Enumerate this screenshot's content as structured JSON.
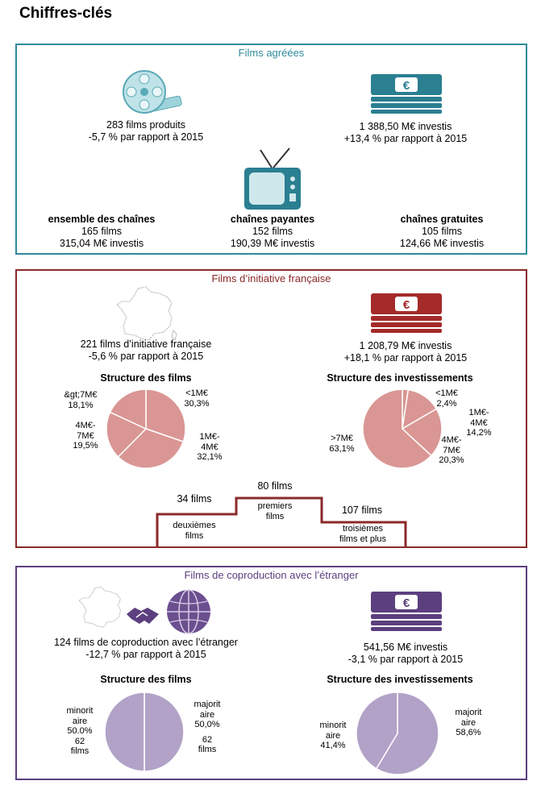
{
  "page_title": "Chiffres-clés",
  "panel1": {
    "title": "Films agréées",
    "films_line1": "283 films produits",
    "films_line2": "-5,7 % par rapport à 2015",
    "invest_line1": "1 388,50 M€ investis",
    "invest_line2": "+13,4 % par rapport à 2015",
    "channels": [
      {
        "name": "ensemble des chaînes",
        "films": "165 films",
        "invest": "315,04 M€ investis"
      },
      {
        "name": "chaînes payantes",
        "films": "152 films",
        "invest": "190,39 M€ investis"
      },
      {
        "name": "chaînes gratuites",
        "films": "105 films",
        "invest": "124,66 M€ investis"
      }
    ],
    "colors": {
      "border": "#2e8b9a",
      "title": "#2e8b9a",
      "accent": "#2a7f91"
    }
  },
  "panel2": {
    "title": "Films d’initiative française",
    "films_line1": "221 films d’initiative française",
    "films_line2": "-5,6 % par rapport à 2015",
    "invest_line1": "1 208,79 M€ investis",
    "invest_line2": "+18,1 % par rapport à 2015",
    "structure_films_title": "Structure des films",
    "structure_invest_title": "Structure des investissements",
    "films_pie_labels": {
      "gt7": [
        "&gt;7M€",
        "18,1%"
      ],
      "lt1": [
        "<1M€",
        "30,3%"
      ],
      "m4_7": [
        "4M€-",
        "7M€",
        "19,5%"
      ],
      "m1_4": [
        "1M€-",
        "4M€",
        "32,1%"
      ]
    },
    "invest_pie_labels": {
      "lt1": [
        "<1M€",
        "2,4%"
      ],
      "m1_4": [
        "1M€-",
        "4M€",
        "14,2%"
      ],
      "m4_7": [
        "4M€-",
        "7M€",
        "20,3%"
      ],
      "gt7": [
        ">7M€",
        "63,1%"
      ]
    },
    "podium": {
      "second_count": "34 films",
      "second_label": [
        "deuxièmes",
        "films"
      ],
      "first_count": "80 films",
      "first_label": [
        "premiers",
        "films"
      ],
      "third_count": "107 films",
      "third_label": [
        "troisièmes",
        "films et plus"
      ]
    },
    "colors": {
      "border": "#8b2a2a",
      "title": "#8b2a2a",
      "accent": "#a52a2a",
      "pie": "#d99694"
    }
  },
  "panel3": {
    "title": "Films de coproduction avec l’étranger",
    "films_line1": "124 films de coproduction avec l’étranger",
    "films_line2": "-12,7 % par rapport à 2015",
    "invest_line1": "541,56 M€ investis",
    "invest_line2": "-3,1 % par rapport à 2015",
    "structure_films_title": "Structure des films",
    "structure_invest_title": "Structure des investissements",
    "films_pie_labels": {
      "minor": [
        "minorit",
        "aire",
        "50.0%",
        "62",
        "films"
      ],
      "major": [
        "majorit",
        "aire",
        "50,0%",
        "62",
        "films"
      ]
    },
    "invest_pie_labels": {
      "minor": [
        "minorit",
        "aire",
        "41,4%"
      ],
      "major": [
        "majorit",
        "aire",
        "58,6%"
      ]
    },
    "colors": {
      "border": "#5c3f7f",
      "title": "#5c3f7f",
      "accent": "#5c3f7f",
      "pie": "#b2a2c7"
    }
  },
  "chart_data": [
    {
      "type": "pie",
      "title": "Structure des films",
      "categories": [
        ">7M€",
        "<1M€",
        "1M€-4M€",
        "4M€-7M€"
      ],
      "values": [
        18.1,
        30.3,
        32.1,
        19.5
      ]
    },
    {
      "type": "pie",
      "title": "Structure des investissements",
      "categories": [
        "<1M€",
        "1M€-4M€",
        "4M€-7M€",
        ">7M€"
      ],
      "values": [
        2.4,
        14.2,
        20.3,
        63.1
      ]
    },
    {
      "type": "pie",
      "title": "Structure des films",
      "categories": [
        "majoritaire",
        "minoritaire"
      ],
      "values": [
        50.0,
        50.0
      ]
    },
    {
      "type": "pie",
      "title": "Structure des investissements",
      "categories": [
        "majoritaire",
        "minoritaire"
      ],
      "values": [
        58.6,
        41.4
      ]
    }
  ]
}
